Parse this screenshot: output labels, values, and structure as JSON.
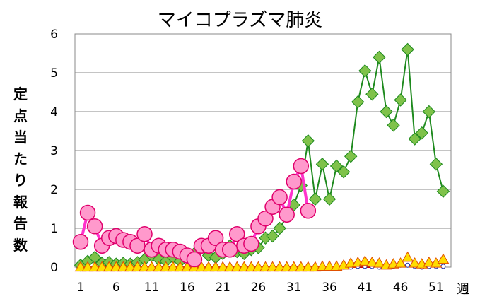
{
  "chart_data": {
    "type": "line",
    "title": "マイコプラズマ肺炎",
    "ylabel": "定点当たり報告数",
    "xlabel": "週",
    "ylim": [
      0,
      6
    ],
    "yticks": [
      0,
      1,
      2,
      3,
      4,
      5,
      6
    ],
    "xlim": [
      1,
      53
    ],
    "xticks": [
      1,
      6,
      11,
      16,
      21,
      26,
      31,
      36,
      41,
      46,
      51
    ],
    "grid": "horizontal",
    "colors": {
      "green_line": "#1e8a1e",
      "green_marker": "#7fc24a",
      "pink_line": "#ff33cc",
      "pink_marker": "#ff99cc",
      "pink_edge": "#e0006c",
      "yellow_marker": "#ffdd00",
      "yellow_edge": "#e05000",
      "blue": "#2233aa",
      "red_line": "#cc0000"
    },
    "series": [
      {
        "style": "green-diamond",
        "x": [
          1,
          2,
          3,
          4,
          5,
          6,
          7,
          8,
          9,
          10,
          11,
          12,
          13,
          14,
          15,
          16,
          17,
          18,
          19,
          20,
          21,
          22,
          23,
          24,
          25,
          26,
          27,
          28,
          29,
          30,
          31,
          32,
          33,
          34,
          35,
          36,
          37,
          38,
          39,
          40,
          41,
          42,
          43,
          44,
          45,
          46,
          47,
          48,
          49,
          50,
          51,
          52
        ],
        "values": [
          0.05,
          0.15,
          0.25,
          0.1,
          0.12,
          0.08,
          0.1,
          0.08,
          0.12,
          0.2,
          0.3,
          0.2,
          0.15,
          0.25,
          0.15,
          0.3,
          0.35,
          0.55,
          0.3,
          0.25,
          0.35,
          0.55,
          0.4,
          0.35,
          0.45,
          0.5,
          0.75,
          0.8,
          1.0,
          1.3,
          1.6,
          2.1,
          3.25,
          1.75,
          2.65,
          1.75,
          2.6,
          2.45,
          2.85,
          4.25,
          5.05,
          4.45,
          5.4,
          4.0,
          3.65,
          4.3,
          5.6,
          3.3,
          3.45,
          4.0,
          2.65,
          1.95
        ]
      },
      {
        "style": "pink-circle",
        "x": [
          1,
          2,
          3,
          4,
          5,
          6,
          7,
          8,
          9,
          10,
          11,
          12,
          13,
          14,
          15,
          16,
          17,
          18,
          19,
          20,
          21,
          22,
          23,
          24,
          25,
          26,
          27,
          28,
          29,
          30,
          31,
          32,
          33
        ],
        "values": [
          0.65,
          1.4,
          1.05,
          0.55,
          0.75,
          0.8,
          0.7,
          0.65,
          0.55,
          0.85,
          0.45,
          0.55,
          0.45,
          0.45,
          0.4,
          0.3,
          0.2,
          0.55,
          0.55,
          0.75,
          0.45,
          0.45,
          0.85,
          0.55,
          0.6,
          1.05,
          1.25,
          1.55,
          1.8,
          1.35,
          2.2,
          2.6,
          1.45
        ]
      },
      {
        "style": "yellow-triangle",
        "x": [
          1,
          2,
          3,
          4,
          5,
          6,
          7,
          8,
          9,
          10,
          11,
          12,
          13,
          14,
          15,
          16,
          17,
          18,
          19,
          20,
          21,
          22,
          23,
          24,
          25,
          26,
          27,
          28,
          29,
          30,
          31,
          32,
          33,
          34,
          35,
          36,
          37,
          38,
          39,
          40,
          41,
          42,
          43,
          44,
          45,
          46,
          47,
          48,
          49,
          50,
          51,
          52
        ],
        "values": [
          0,
          0,
          0,
          0,
          0,
          0,
          0,
          0,
          0,
          0,
          0,
          0,
          0,
          0,
          0,
          0,
          0,
          0,
          0,
          0,
          0,
          0,
          0,
          0,
          0,
          0,
          0,
          0,
          0,
          0,
          0,
          0,
          0,
          0,
          0.02,
          0.02,
          0.02,
          0.05,
          0.1,
          0.12,
          0.15,
          0.12,
          0.1,
          0.05,
          0.08,
          0.1,
          0.25,
          0.1,
          0.08,
          0.12,
          0.1,
          0.2
        ]
      },
      {
        "style": "blue-circle",
        "x": [
          1,
          2,
          3,
          4,
          5,
          6,
          7,
          8,
          9,
          10,
          11,
          12,
          13,
          14,
          15,
          16,
          17,
          18,
          19,
          20,
          21,
          22,
          23,
          24,
          25,
          26,
          27,
          28,
          29,
          30,
          31,
          32,
          33,
          34,
          35,
          36,
          37,
          38,
          39,
          40,
          41,
          42,
          43,
          44,
          45,
          46,
          47,
          48,
          49,
          50,
          51,
          52
        ],
        "values": [
          0,
          0,
          0,
          0,
          0,
          0,
          0,
          0,
          0,
          0,
          0,
          0,
          0,
          0,
          0,
          0,
          0,
          0,
          0,
          0,
          0,
          0,
          0,
          0,
          0,
          0,
          0,
          0,
          0,
          0,
          0,
          0,
          0,
          0,
          0,
          0,
          0,
          0,
          0,
          0.02,
          0.02,
          0.02,
          0,
          0.02,
          0.02,
          0.05,
          0.05,
          0.02,
          0,
          0.02,
          0.02,
          0.02
        ]
      },
      {
        "style": "red-line",
        "x": [
          1,
          2,
          3,
          4,
          5,
          6,
          7,
          8,
          9,
          10,
          11,
          12,
          13,
          14,
          15,
          16,
          17,
          18,
          19,
          20,
          21,
          22,
          23,
          24,
          25,
          26,
          27,
          28,
          29,
          30,
          31,
          32,
          33,
          34,
          35,
          36,
          37,
          38,
          39,
          40,
          41,
          42,
          43,
          44,
          45,
          46,
          47,
          48,
          49,
          50,
          51,
          52
        ],
        "values": [
          0,
          0,
          0,
          0,
          0,
          0,
          0,
          0,
          0,
          0,
          0,
          0,
          0,
          0,
          0,
          0,
          0,
          0,
          0,
          0,
          0,
          0,
          0,
          0,
          0,
          0,
          0,
          0,
          0,
          0,
          0,
          0,
          0,
          0,
          0,
          0,
          0,
          0,
          0,
          0,
          0,
          0,
          0.02,
          0.05,
          0.02,
          0.02,
          0.02,
          0.02,
          0.02,
          0,
          0.02,
          0.02
        ]
      }
    ]
  }
}
